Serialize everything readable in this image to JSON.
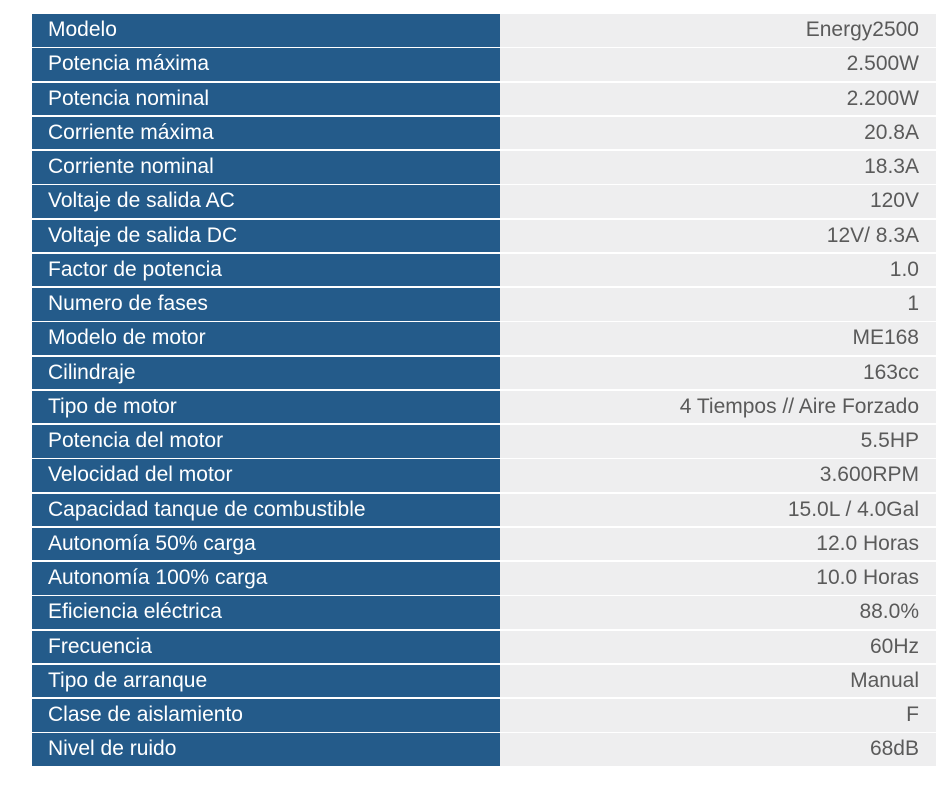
{
  "specs": [
    {
      "label": "Modelo",
      "value": "Energy2500"
    },
    {
      "label": "Potencia máxima",
      "value": "2.500W"
    },
    {
      "label": "Potencia nominal",
      "value": "2.200W"
    },
    {
      "label": "Corriente máxima",
      "value": "20.8A"
    },
    {
      "label": "Corriente nominal",
      "value": "18.3A"
    },
    {
      "label": "Voltaje de salida AC",
      "value": "120V"
    },
    {
      "label": "Voltaje de salida DC",
      "value": "12V/ 8.3A"
    },
    {
      "label": "Factor de potencia",
      "value": "1.0"
    },
    {
      "label": "Numero de fases",
      "value": "1"
    },
    {
      "label": "Modelo de motor",
      "value": "ME168"
    },
    {
      "label": "Cilindraje",
      "value": "163cc"
    },
    {
      "label": "Tipo de motor",
      "value": "4 Tiempos // Aire Forzado"
    },
    {
      "label": "Potencia del motor",
      "value": "5.5HP"
    },
    {
      "label": "Velocidad del motor",
      "value": "3.600RPM"
    },
    {
      "label": "Capacidad tanque de combustible",
      "value": "15.0L / 4.0Gal"
    },
    {
      "label": "Autonomía 50% carga",
      "value": "12.0 Horas"
    },
    {
      "label": "Autonomía 100% carga",
      "value": "10.0 Horas"
    },
    {
      "label": "Eficiencia eléctrica",
      "value": "88.0%"
    },
    {
      "label": "Frecuencia",
      "value": "60Hz"
    },
    {
      "label": "Tipo de arranque",
      "value": "Manual"
    },
    {
      "label": "Clase de aislamiento",
      "value": "F"
    },
    {
      "label": "Nivel de ruido",
      "value": "68dB"
    }
  ],
  "colors": {
    "label_bg": "#245b8a",
    "label_text": "#ffffff",
    "value_bg": "#eeeeef",
    "value_text": "#5a5a5a"
  }
}
